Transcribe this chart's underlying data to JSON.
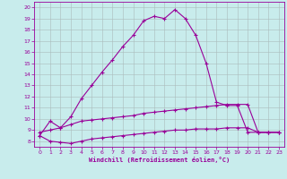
{
  "xlabel": "Windchill (Refroidissement éolien,°C)",
  "xlim": [
    -0.5,
    23.5
  ],
  "ylim": [
    7.5,
    20.5
  ],
  "yticks": [
    8,
    9,
    10,
    11,
    12,
    13,
    14,
    15,
    16,
    17,
    18,
    19,
    20
  ],
  "xticks": [
    0,
    1,
    2,
    3,
    4,
    5,
    6,
    7,
    8,
    9,
    10,
    11,
    12,
    13,
    14,
    15,
    16,
    17,
    18,
    19,
    20,
    21,
    22,
    23
  ],
  "background_color": "#c8ecec",
  "grid_color": "#aabbbb",
  "line_color": "#990099",
  "series": [
    {
      "x": [
        0,
        1,
        2,
        3,
        4,
        5,
        6,
        7,
        8,
        9,
        10,
        11,
        12,
        13,
        14,
        15,
        16,
        17,
        18,
        19,
        20,
        21,
        22,
        23
      ],
      "y": [
        8.5,
        9.8,
        9.2,
        10.2,
        11.8,
        13.0,
        14.2,
        15.3,
        16.5,
        17.5,
        18.8,
        19.2,
        19.0,
        19.8,
        19.0,
        17.5,
        15.0,
        11.5,
        11.2,
        11.2,
        8.8,
        8.8,
        8.8,
        8.8
      ]
    },
    {
      "x": [
        0,
        1,
        2,
        3,
        4,
        5,
        6,
        7,
        8,
        9,
        10,
        11,
        12,
        13,
        14,
        15,
        16,
        17,
        18,
        19,
        20,
        21,
        22,
        23
      ],
      "y": [
        8.8,
        9.0,
        9.2,
        9.5,
        9.8,
        9.9,
        10.0,
        10.1,
        10.2,
        10.3,
        10.5,
        10.6,
        10.7,
        10.8,
        10.9,
        11.0,
        11.1,
        11.2,
        11.3,
        11.3,
        11.3,
        8.8,
        8.8,
        8.8
      ]
    },
    {
      "x": [
        0,
        1,
        2,
        3,
        4,
        5,
        6,
        7,
        8,
        9,
        10,
        11,
        12,
        13,
        14,
        15,
        16,
        17,
        18,
        19,
        20,
        21,
        22,
        23
      ],
      "y": [
        8.5,
        8.0,
        7.9,
        7.8,
        8.0,
        8.2,
        8.3,
        8.4,
        8.5,
        8.6,
        8.7,
        8.8,
        8.9,
        9.0,
        9.0,
        9.1,
        9.1,
        9.1,
        9.2,
        9.2,
        9.2,
        8.8,
        8.8,
        8.8
      ]
    }
  ]
}
